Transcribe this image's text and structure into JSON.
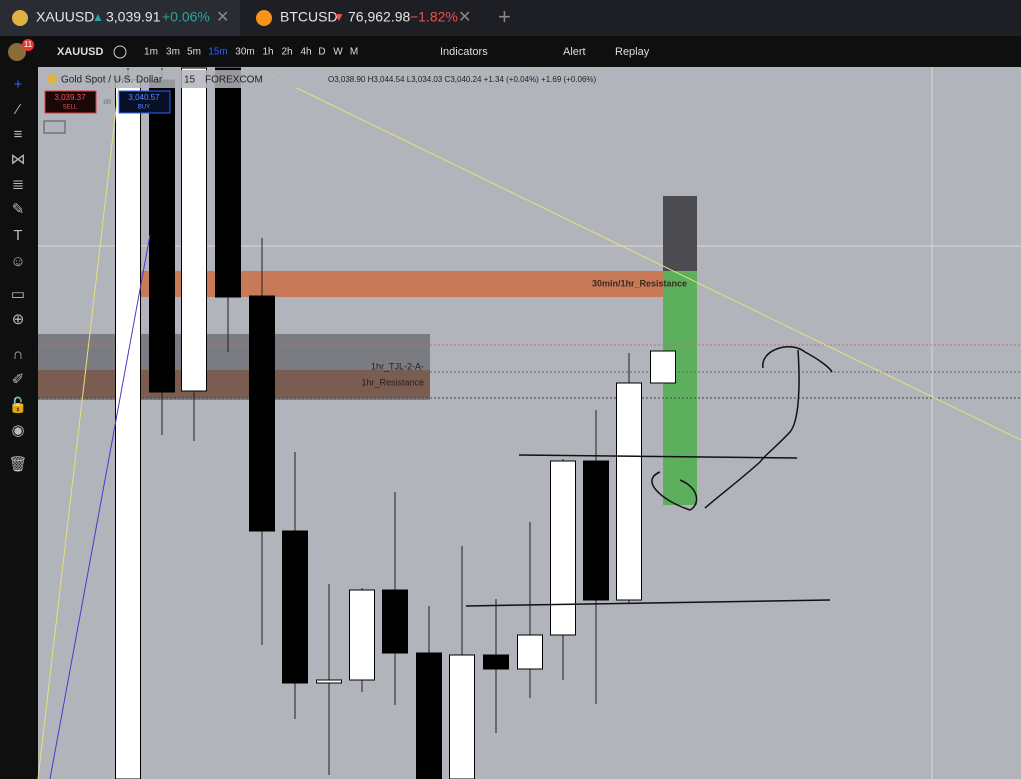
{
  "tabs": [
    {
      "symbol": "XAUUSD",
      "price": "3,039.91",
      "change": "+0.06%"
    },
    {
      "symbol": "BTCUSD",
      "price": "76,962.98",
      "change": "−1.82%"
    }
  ],
  "badge": "11",
  "toolbar": {
    "symbol": "XAUUSD",
    "intervals": [
      "1m",
      "3m",
      "5m",
      "15m",
      "30m",
      "1h",
      "2h",
      "4h",
      "D",
      "W",
      "M"
    ],
    "indicators": "Indicators",
    "alert": "Alert",
    "replay": "Replay"
  },
  "legend": {
    "name": "Gold Spot / U.S. Dollar",
    "interval": "15",
    "exchange": "FOREXCOM",
    "ohlc": "O3,038.90 H3,044.54 L3,034.03 C3,040.24 +1.34 (+0.04%) +1.69 (+0.06%)"
  },
  "trade": {
    "sell_price": "3,039.37",
    "sell": "SELL",
    "spread": "120",
    "buy_price": "3,040.57",
    "buy": "BUY"
  },
  "zones": [
    "30min/1hr_Resistance",
    "1hr_TJL-2-A-",
    "1hr_Resistance"
  ]
}
